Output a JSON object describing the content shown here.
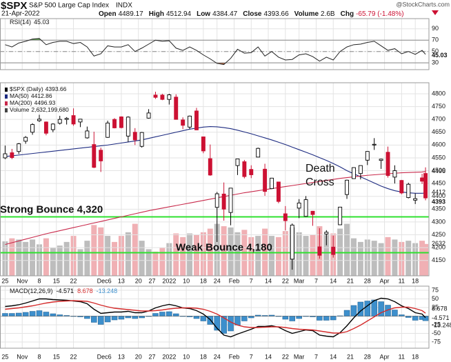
{
  "header": {
    "symbol": "$SPX",
    "name": "S&P 500 Large Cap Index",
    "exchange": "INDX",
    "watermark": "@StockCharts.com",
    "date": "21-Apr-2022",
    "quote": [
      {
        "label": "Open",
        "value": "4489.17"
      },
      {
        "label": "High",
        "value": "4512.94"
      },
      {
        "label": "Low",
        "value": "4384.47"
      },
      {
        "label": "Close",
        "value": "4393.66"
      },
      {
        "label": "Volume",
        "value": "2.6B"
      },
      {
        "label": "Chg",
        "value": "-65.79 (-1.48%)"
      }
    ]
  },
  "chart_data": {
    "type": "stock",
    "grid": true,
    "x": [
      0,
      2,
      4,
      6,
      8,
      10,
      12,
      14,
      16,
      18,
      20,
      22,
      24,
      26,
      28,
      30,
      32,
      34,
      36,
      38,
      40,
      42,
      44,
      46,
      48,
      50,
      52,
      54,
      56,
      58,
      60,
      62,
      64,
      66,
      68,
      70,
      72,
      74,
      76,
      78,
      80,
      82,
      84,
      86,
      88,
      90,
      92,
      94,
      96,
      98,
      100,
      102,
      104,
      106,
      108,
      110,
      112,
      114,
      116,
      118,
      120,
      122,
      123
    ],
    "xlim": [
      -1.5,
      124
    ],
    "xticks": [
      {
        "value": 0,
        "label": "25"
      },
      {
        "value": 5,
        "label": "Nov"
      },
      {
        "value": 10,
        "label": "8"
      },
      {
        "value": 15,
        "label": "15"
      },
      {
        "value": 20,
        "label": "22"
      },
      {
        "value": 29,
        "label": "Dec6"
      },
      {
        "value": 34,
        "label": "13"
      },
      {
        "value": 39,
        "label": "20"
      },
      {
        "value": 43,
        "label": "27"
      },
      {
        "value": 48,
        "label": "2022"
      },
      {
        "value": 53,
        "label": "10"
      },
      {
        "value": 58,
        "label": "18"
      },
      {
        "value": 62,
        "label": "24"
      },
      {
        "value": 67,
        "label": "Feb"
      },
      {
        "value": 72,
        "label": "7"
      },
      {
        "value": 77,
        "label": "14"
      },
      {
        "value": 82,
        "label": "22"
      },
      {
        "value": 86,
        "label": "Mar"
      },
      {
        "value": 91,
        "label": "7"
      },
      {
        "value": 96,
        "label": "14"
      },
      {
        "value": 101,
        "label": "21"
      },
      {
        "value": 106,
        "label": "28"
      },
      {
        "value": 111,
        "label": "Apr"
      },
      {
        "value": 116,
        "label": "11"
      },
      {
        "value": 120,
        "label": "18"
      }
    ],
    "rsi": {
      "type": "line",
      "title": "RSI(14)",
      "color": "#222222",
      "ylim": [
        18,
        108
      ],
      "yticks": [
        30,
        50,
        70,
        90
      ],
      "overbought": 70,
      "oversold": 30,
      "overbought_color": "#5a9e4b",
      "oversold_color": "#a0522d",
      "values": [
        62,
        58,
        65,
        68,
        72,
        73,
        62,
        66,
        68,
        68,
        64,
        66,
        58,
        42,
        46,
        60,
        58,
        58,
        62,
        50,
        56,
        63,
        70,
        68,
        69,
        56,
        52,
        58,
        52,
        44,
        37,
        29,
        27,
        38,
        54,
        47,
        48,
        58,
        42,
        50,
        40,
        35,
        36,
        44,
        46,
        41,
        33,
        40,
        35,
        50,
        58,
        62,
        63,
        66,
        68,
        60,
        52,
        55,
        46,
        50,
        45,
        52,
        45.03
      ]
    },
    "price": {
      "type": "candlestick",
      "name": "$SPX (Daily)",
      "up_color": "#000000",
      "down_color": "#cc1133",
      "last_label": "4393",
      "ylim": [
        4090,
        4843
      ],
      "yticks": [
        4150,
        4200,
        4250,
        4300,
        4350,
        4400,
        4450,
        4500,
        4550,
        4600,
        4650,
        4700,
        4750,
        4800
      ],
      "open": [
        4550,
        4570,
        4575,
        4615,
        4650,
        4695,
        4690,
        4660,
        4685,
        4700,
        4715,
        4690,
        4628,
        4602,
        4580,
        4630,
        4700,
        4710,
        4635,
        4650,
        4595,
        4705,
        4795,
        4795,
        4778,
        4787,
        4698,
        4670,
        4733,
        4632,
        4547,
        4357,
        4409,
        4337,
        4520,
        4535,
        4505,
        4553,
        4506,
        4430,
        4456,
        4332,
        4155,
        4354,
        4322,
        4342,
        4203,
        4253,
        4202,
        4289,
        4407,
        4469,
        4489,
        4541,
        4600,
        4540,
        4572,
        4475,
        4462,
        4395,
        4385,
        4472,
        4489.17
      ],
      "high": [
        4598,
        4585,
        4608,
        4635,
        4685,
        4718,
        4692,
        4685,
        4714,
        4709,
        4743,
        4702,
        4672,
        4652,
        4590,
        4695,
        4705,
        4712,
        4712,
        4666,
        4651,
        4740,
        4808,
        4800,
        4800,
        4798,
        4708,
        4715,
        4745,
        4633,
        4602,
        4417,
        4454,
        4432,
        4546,
        4542,
        4521,
        4590,
        4527,
        4472,
        4456,
        4362,
        4294,
        4389,
        4401,
        4343,
        4276,
        4268,
        4247,
        4358,
        4465,
        4513,
        4520,
        4576,
        4627,
        4547,
        4594,
        4521,
        4464,
        4453,
        4411,
        4488,
        4512.94
      ],
      "low": [
        4545,
        4545,
        4565,
        4605,
        4640,
        4690,
        4638,
        4650,
        4680,
        4680,
        4675,
        4670,
        4625,
        4510,
        4495,
        4628,
        4665,
        4665,
        4612,
        4600,
        4590,
        4703,
        4780,
        4775,
        4758,
        4699,
        4662,
        4662,
        4658,
        4568,
        4480,
        4222,
        4305,
        4287,
        4483,
        4470,
        4471,
        4553,
        4402,
        4428,
        4373,
        4267,
        4114,
        4315,
        4320,
        4285,
        4157,
        4209,
        4161,
        4288,
        4390,
        4469,
        4466,
        4522,
        4581,
        4507,
        4473,
        4450,
        4408,
        4392,
        4370,
        4448,
        4384.47
      ],
      "close": [
        4566,
        4551,
        4605,
        4630,
        4680,
        4701,
        4646,
        4682,
        4700,
        4704,
        4682,
        4701,
        4655,
        4513,
        4538,
        4686,
        4667,
        4668,
        4709,
        4620,
        4649,
        4725,
        4786,
        4778,
        4796,
        4700,
        4677,
        4713,
        4659,
        4577,
        4483,
        4410,
        4350,
        4432,
        4546,
        4477,
        4484,
        4587,
        4419,
        4471,
        4380,
        4305,
        4288,
        4374,
        4387,
        4329,
        4170,
        4260,
        4173,
        4358,
        4463,
        4512,
        4520,
        4575,
        4603,
        4545,
        4481,
        4500,
        4413,
        4447,
        4391,
        4459,
        4393.66
      ],
      "series": [
        {
          "name": "MA(50)",
          "color": "#1c2a80",
          "last_label": "4412",
          "values": [
            4555,
            4558,
            4561,
            4564,
            4567,
            4570,
            4573,
            4576,
            4579,
            4582,
            4585,
            4588,
            4591,
            4594,
            4597,
            4600,
            4604,
            4608,
            4612,
            4616,
            4620,
            4626,
            4632,
            4638,
            4644,
            4650,
            4656,
            4662,
            4666,
            4670,
            4672,
            4671,
            4668,
            4664,
            4658,
            4651,
            4644,
            4636,
            4628,
            4620,
            4611,
            4602,
            4592,
            4582,
            4572,
            4562,
            4551,
            4540,
            4528,
            4515,
            4500,
            4488,
            4476,
            4464,
            4452,
            4440,
            4430,
            4422,
            4417,
            4414,
            4412,
            4412,
            4412.86
          ]
        },
        {
          "name": "MA(200)",
          "color": "#c8284a",
          "last_label": "4496",
          "values": [
            4212,
            4219,
            4226,
            4233,
            4240,
            4247,
            4254,
            4260,
            4266,
            4272,
            4278,
            4284,
            4290,
            4296,
            4302,
            4308,
            4314,
            4320,
            4326,
            4332,
            4338,
            4344,
            4349,
            4354,
            4359,
            4364,
            4369,
            4374,
            4379,
            4384,
            4389,
            4394,
            4399,
            4404,
            4409,
            4414,
            4418,
            4422,
            4426,
            4430,
            4434,
            4438,
            4442,
            4446,
            4450,
            4454,
            4458,
            4462,
            4466,
            4470,
            4473,
            4476,
            4479,
            4482,
            4484,
            4486,
            4488,
            4490,
            4492,
            4493,
            4494,
            4495,
            4496.93
          ]
        }
      ],
      "volume": {
        "name": "Volume",
        "legend_label": "2,632,199,680",
        "last_label": "2632",
        "ylim": [
          0,
          5700
        ],
        "up_color": "#bdbdbd",
        "down_color": "#f0b0b4",
        "values": [
          2850,
          3100,
          3000,
          2800,
          3000,
          2600,
          3100,
          2300,
          2500,
          2800,
          3300,
          2200,
          2900,
          4200,
          4000,
          3300,
          2800,
          3300,
          3600,
          4300,
          2900,
          2200,
          2000,
          2300,
          2700,
          3500,
          3200,
          3500,
          3400,
          3600,
          3900,
          4300,
          4100,
          4000,
          3600,
          3800,
          3200,
          3300,
          3900,
          3300,
          3200,
          3700,
          4000,
          3600,
          3300,
          3400,
          4100,
          3400,
          3500,
          3900,
          4300,
          3100,
          2800,
          3000,
          2900,
          2700,
          3200,
          3000,
          2800,
          2900,
          2700,
          2900,
          2632.19968
        ]
      },
      "annotations": [
        {
          "text": "Strong Bounce 4,320",
          "value": 4320,
          "color": "#2ee02e"
        },
        {
          "text": "Weak Bounce 4,180",
          "value": 4180,
          "color": "#2ee02e"
        }
      ],
      "callout": {
        "lines": [
          "Death",
          "Cross"
        ],
        "color": "#d42a2a"
      }
    },
    "macd": {
      "type": "line",
      "title": "MACD(12,26,9)",
      "ylim": [
        -93,
        87
      ],
      "yticks": [
        75,
        50,
        25,
        -25,
        -50,
        -75
      ],
      "series": [
        {
          "name": "MACD",
          "type": "line",
          "color": "#000000",
          "values": [
            28,
            30,
            33,
            38,
            44,
            50,
            50,
            48,
            47,
            46,
            44,
            42,
            36,
            20,
            8,
            10,
            12,
            12,
            14,
            10,
            10,
            15,
            24,
            30,
            34,
            30,
            24,
            22,
            16,
            6,
            -10,
            -35,
            -55,
            -60,
            -52,
            -45,
            -38,
            -30,
            -30,
            -28,
            -32,
            -42,
            -50,
            -45,
            -40,
            -42,
            -55,
            -58,
            -60,
            -48,
            -28,
            -5,
            15,
            30,
            45,
            52,
            50,
            42,
            30,
            22,
            10,
            6,
            -4.571
          ]
        },
        {
          "name": "Signal",
          "type": "line",
          "color": "#d42a2a",
          "values": [
            20,
            22,
            24,
            27,
            30,
            34,
            38,
            41,
            43,
            44,
            45,
            44,
            43,
            38,
            32,
            27,
            23,
            21,
            19,
            17,
            15,
            15,
            16,
            18,
            21,
            23,
            24,
            24,
            23,
            20,
            14,
            6,
            -5,
            -17,
            -26,
            -31,
            -33,
            -33,
            -32,
            -31,
            -31,
            -33,
            -36,
            -38,
            -39,
            -40,
            -43,
            -46,
            -49,
            -49,
            -45,
            -36,
            -26,
            -14,
            -2,
            10,
            18,
            24,
            26,
            26,
            22,
            16,
            8.678
          ]
        },
        {
          "name": "Histogram",
          "type": "bar",
          "color": "#3d8fcc",
          "values": [
            8,
            8,
            9,
            11,
            14,
            16,
            12,
            7,
            4,
            2,
            -1,
            -2,
            -7,
            -18,
            -24,
            -17,
            -11,
            -9,
            -5,
            -7,
            -5,
            0,
            8,
            12,
            13,
            7,
            0,
            -2,
            -7,
            -14,
            -24,
            -41,
            -50,
            -43,
            -26,
            -14,
            -5,
            3,
            2,
            3,
            -1,
            -9,
            -14,
            -7,
            -1,
            -2,
            -12,
            -12,
            -11,
            1,
            17,
            31,
            41,
            44,
            47,
            42,
            32,
            18,
            4,
            -4,
            -12,
            -10,
            -13.248
          ]
        }
      ]
    }
  }
}
